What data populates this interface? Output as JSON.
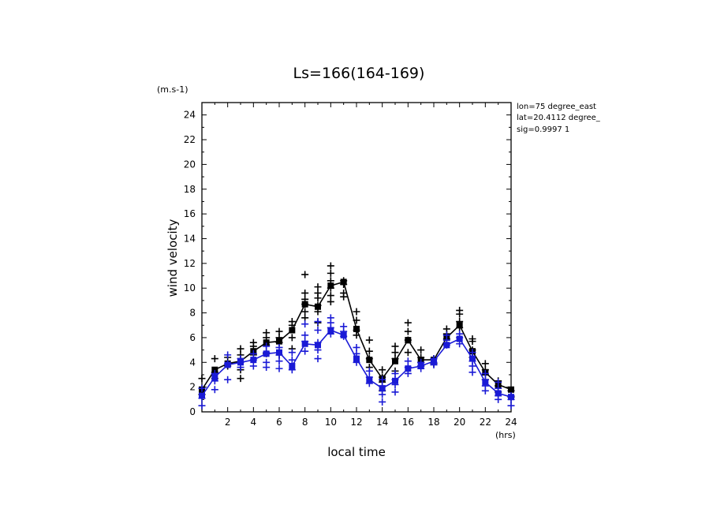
{
  "chart_data": {
    "type": "line",
    "title": "Ls=166(164-169)",
    "ylabel": "wind velocity",
    "yunit": "(m.s-1)",
    "xlabel": "local time",
    "xunit": "(hrs)",
    "xlim": [
      0,
      24
    ],
    "ylim": [
      0,
      25
    ],
    "xticks": [
      2,
      4,
      6,
      8,
      10,
      12,
      14,
      16,
      18,
      20,
      22,
      24
    ],
    "yticks": [
      0,
      2,
      4,
      6,
      8,
      10,
      12,
      14,
      16,
      18,
      20,
      22,
      24
    ],
    "info": [
      "lon=75 degree_east",
      "lat=20.4112 degree_",
      "sig=0.9997 1"
    ],
    "grid": false,
    "legend": "none",
    "series": [
      {
        "color": "#000000",
        "x": [
          0,
          1,
          2,
          3,
          4,
          5,
          6,
          7,
          8,
          9,
          10,
          11,
          12,
          13,
          14,
          15,
          16,
          17,
          18,
          19,
          20,
          21,
          22,
          23,
          24
        ],
        "values": [
          1.8,
          3.4,
          3.9,
          4.1,
          4.9,
          5.6,
          5.7,
          6.6,
          8.7,
          8.5,
          10.2,
          10.5,
          6.7,
          4.2,
          2.7,
          4.1,
          5.8,
          4.2,
          4.2,
          6.0,
          7.0,
          4.9,
          3.2,
          2.2,
          1.8
        ],
        "scatter": [
          [
            0,
            2.7
          ],
          [
            0,
            1.4
          ],
          [
            1,
            4.3
          ],
          [
            1,
            3.2
          ],
          [
            1,
            2.7
          ],
          [
            2,
            4.4
          ],
          [
            2,
            3.7
          ],
          [
            3,
            5.1
          ],
          [
            3,
            4.6
          ],
          [
            3,
            3.4
          ],
          [
            3,
            2.7
          ],
          [
            4,
            5.6
          ],
          [
            4,
            5.3
          ],
          [
            4,
            4.6
          ],
          [
            5,
            6.4
          ],
          [
            5,
            6.0
          ],
          [
            5,
            5.4
          ],
          [
            5,
            4.7
          ],
          [
            6,
            6.5
          ],
          [
            6,
            6.0
          ],
          [
            6,
            5.6
          ],
          [
            6,
            4.6
          ],
          [
            7,
            7.3
          ],
          [
            7,
            7.0
          ],
          [
            7,
            6.0
          ],
          [
            7,
            5.1
          ],
          [
            8,
            11.1
          ],
          [
            8,
            9.6
          ],
          [
            8,
            9.1
          ],
          [
            8,
            8.7
          ],
          [
            8,
            8.1
          ],
          [
            8,
            7.6
          ],
          [
            9,
            10.1
          ],
          [
            9,
            9.6
          ],
          [
            9,
            9.2
          ],
          [
            9,
            8.6
          ],
          [
            9,
            8.1
          ],
          [
            9,
            7.2
          ],
          [
            10,
            11.8
          ],
          [
            10,
            11.2
          ],
          [
            10,
            10.6
          ],
          [
            10,
            10.0
          ],
          [
            10,
            9.4
          ],
          [
            10,
            8.9
          ],
          [
            11,
            10.6
          ],
          [
            11,
            10.3
          ],
          [
            11,
            9.6
          ],
          [
            11,
            9.3
          ],
          [
            12,
            8.1
          ],
          [
            12,
            7.4
          ],
          [
            12,
            6.6
          ],
          [
            12,
            6.2
          ],
          [
            13,
            5.8
          ],
          [
            13,
            4.9
          ],
          [
            13,
            4.3
          ],
          [
            13,
            3.6
          ],
          [
            14,
            3.4
          ],
          [
            14,
            2.8
          ],
          [
            14,
            2.4
          ],
          [
            14,
            1.7
          ],
          [
            15,
            5.3
          ],
          [
            15,
            4.8
          ],
          [
            15,
            4.3
          ],
          [
            15,
            3.3
          ],
          [
            16,
            7.2
          ],
          [
            16,
            6.5
          ],
          [
            16,
            5.8
          ],
          [
            16,
            4.8
          ],
          [
            17,
            5.0
          ],
          [
            17,
            4.4
          ],
          [
            17,
            4.0
          ],
          [
            17,
            3.7
          ],
          [
            18,
            4.3
          ],
          [
            18,
            3.9
          ],
          [
            19,
            6.7
          ],
          [
            19,
            6.3
          ],
          [
            19,
            5.9
          ],
          [
            20,
            8.2
          ],
          [
            20,
            7.9
          ],
          [
            20,
            7.3
          ],
          [
            20,
            6.8
          ],
          [
            21,
            5.9
          ],
          [
            21,
            5.7
          ],
          [
            21,
            5.0
          ],
          [
            21,
            4.4
          ],
          [
            22,
            3.9
          ],
          [
            22,
            3.4
          ],
          [
            22,
            3.0
          ],
          [
            22,
            2.6
          ],
          [
            23,
            2.5
          ],
          [
            23,
            2.1
          ],
          [
            23,
            1.6
          ],
          [
            24,
            1.7
          ],
          [
            24,
            1.2
          ]
        ]
      },
      {
        "color": "#1a1ad6",
        "x": [
          0,
          1,
          2,
          3,
          4,
          5,
          6,
          7,
          8,
          9,
          10,
          11,
          12,
          13,
          14,
          15,
          16,
          17,
          18,
          19,
          20,
          21,
          22,
          23,
          24
        ],
        "values": [
          1.3,
          2.8,
          3.8,
          4.0,
          4.2,
          4.7,
          4.8,
          3.7,
          5.5,
          5.4,
          6.6,
          6.2,
          4.3,
          2.6,
          1.9,
          2.5,
          3.5,
          3.7,
          4.1,
          5.4,
          5.9,
          4.3,
          2.4,
          1.5,
          1.2
        ],
        "scatter": [
          [
            0,
            1.9
          ],
          [
            0,
            1.1
          ],
          [
            0,
            0.5
          ],
          [
            1,
            3.1
          ],
          [
            1,
            2.5
          ],
          [
            1,
            1.8
          ],
          [
            2,
            4.6
          ],
          [
            2,
            3.9
          ],
          [
            2,
            2.6
          ],
          [
            3,
            4.3
          ],
          [
            3,
            4.0
          ],
          [
            3,
            3.6
          ],
          [
            4,
            4.7
          ],
          [
            4,
            4.2
          ],
          [
            4,
            3.7
          ],
          [
            5,
            5.3
          ],
          [
            5,
            4.8
          ],
          [
            5,
            4.0
          ],
          [
            5,
            3.6
          ],
          [
            6,
            5.2
          ],
          [
            6,
            4.6
          ],
          [
            6,
            4.1
          ],
          [
            6,
            3.5
          ],
          [
            7,
            4.8
          ],
          [
            7,
            4.2
          ],
          [
            7,
            3.4
          ],
          [
            8,
            7.1
          ],
          [
            8,
            6.2
          ],
          [
            8,
            5.7
          ],
          [
            8,
            4.9
          ],
          [
            9,
            7.3
          ],
          [
            9,
            6.6
          ],
          [
            9,
            5.6
          ],
          [
            9,
            5.0
          ],
          [
            9,
            4.3
          ],
          [
            10,
            7.6
          ],
          [
            10,
            7.2
          ],
          [
            10,
            6.8
          ],
          [
            10,
            6.3
          ],
          [
            11,
            6.9
          ],
          [
            11,
            6.5
          ],
          [
            11,
            6.1
          ],
          [
            12,
            5.2
          ],
          [
            12,
            4.7
          ],
          [
            12,
            4.0
          ],
          [
            13,
            3.3
          ],
          [
            13,
            2.8
          ],
          [
            13,
            2.3
          ],
          [
            14,
            2.6
          ],
          [
            14,
            2.1
          ],
          [
            14,
            1.4
          ],
          [
            14,
            0.8
          ],
          [
            15,
            3.1
          ],
          [
            15,
            2.6
          ],
          [
            15,
            2.2
          ],
          [
            15,
            1.6
          ],
          [
            16,
            4.1
          ],
          [
            16,
            3.6
          ],
          [
            16,
            3.1
          ],
          [
            17,
            4.0
          ],
          [
            17,
            3.7
          ],
          [
            17,
            3.5
          ],
          [
            18,
            4.3
          ],
          [
            18,
            4.0
          ],
          [
            18,
            3.8
          ],
          [
            19,
            6.2
          ],
          [
            19,
            5.8
          ],
          [
            19,
            5.4
          ],
          [
            20,
            6.3
          ],
          [
            20,
            6.0
          ],
          [
            20,
            5.5
          ],
          [
            21,
            4.8
          ],
          [
            21,
            4.1
          ],
          [
            21,
            3.7
          ],
          [
            21,
            3.2
          ],
          [
            22,
            3.1
          ],
          [
            22,
            2.6
          ],
          [
            22,
            2.1
          ],
          [
            22,
            1.7
          ],
          [
            23,
            2.4
          ],
          [
            23,
            1.9
          ],
          [
            23,
            1.3
          ],
          [
            23,
            1.0
          ],
          [
            24,
            1.3
          ],
          [
            24,
            1.0
          ],
          [
            24,
            0.5
          ]
        ]
      }
    ]
  }
}
